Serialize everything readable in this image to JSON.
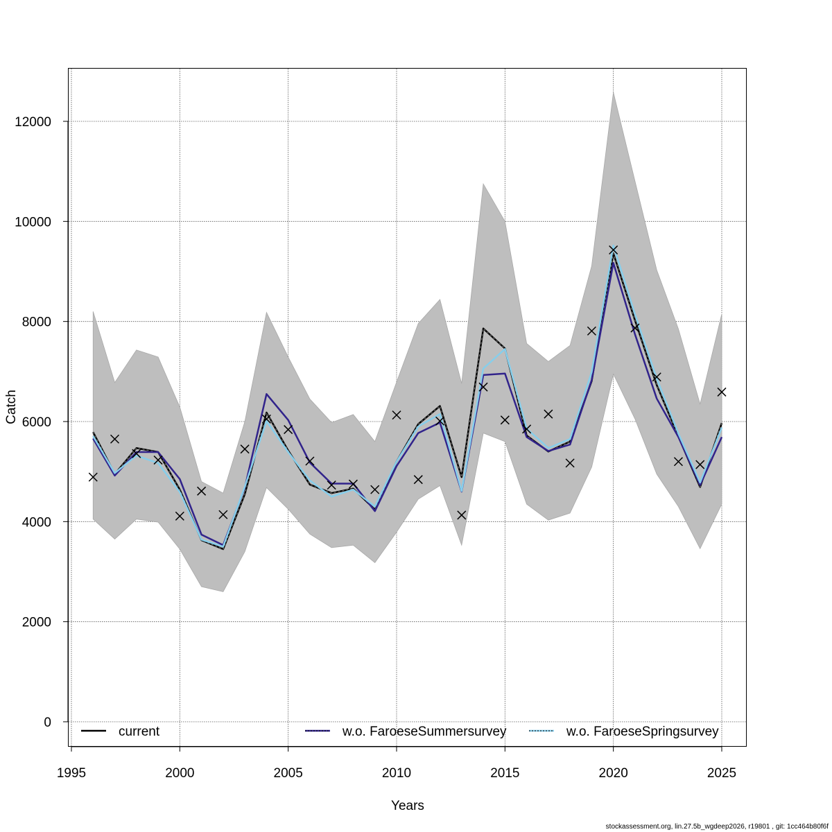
{
  "chart_data": {
    "type": "line",
    "title": "",
    "xlabel": "Years",
    "ylabel": "Catch",
    "xlim": [
      1995,
      2025
    ],
    "ylim": [
      0,
      12000
    ],
    "x_ticks": [
      1995,
      2000,
      2005,
      2010,
      2015,
      2020,
      2025
    ],
    "y_ticks": [
      0,
      2000,
      4000,
      6000,
      8000,
      10000,
      12000
    ],
    "grid": true,
    "legend_position": "bottom",
    "x": [
      1996,
      1997,
      1998,
      1999,
      2000,
      2001,
      2002,
      2003,
      2004,
      2005,
      2006,
      2007,
      2008,
      2009,
      2010,
      2011,
      2012,
      2013,
      2014,
      2015,
      2016,
      2017,
      2018,
      2019,
      2020,
      2021,
      2022,
      2023,
      2024,
      2025
    ],
    "confidence_band": {
      "name": "current 95% CI",
      "color": "#bebebe",
      "lower": [
        4050,
        3650,
        4050,
        3990,
        3450,
        2700,
        2600,
        3400,
        4680,
        4250,
        3750,
        3480,
        3530,
        3180,
        3790,
        4450,
        4720,
        3530,
        5770,
        5600,
        4350,
        4030,
        4170,
        5090,
        6950,
        6050,
        4950,
        4300,
        3460,
        4350
      ],
      "upper": [
        8200,
        6780,
        7430,
        7290,
        6290,
        4800,
        4570,
        6000,
        8180,
        7290,
        6450,
        5980,
        6140,
        5600,
        6790,
        7960,
        8440,
        6760,
        10750,
        10000,
        7560,
        7200,
        7520,
        9110,
        12580,
        10800,
        9030,
        7850,
        6350,
        8150
      ]
    },
    "series": [
      {
        "name": "current",
        "color": "#000000",
        "style": "solid",
        "values": [
          5790,
          4950,
          5470,
          5390,
          4640,
          3630,
          3450,
          4550,
          6180,
          5420,
          4740,
          4570,
          4660,
          4240,
          5200,
          5950,
          6310,
          4890,
          7860,
          7460,
          5720,
          5400,
          5600,
          6810,
          9360,
          8020,
          6730,
          5700,
          4690,
          5970
        ]
      },
      {
        "name": "w.o. FaroeseSummersurvey",
        "color": "#31238b",
        "style": "solid",
        "values": [
          5660,
          4920,
          5390,
          5390,
          4850,
          3740,
          3530,
          4680,
          6550,
          6030,
          5180,
          4760,
          4760,
          4210,
          5110,
          5770,
          5980,
          4600,
          6930,
          6960,
          5690,
          5410,
          5540,
          6830,
          9170,
          7740,
          6460,
          5690,
          4730,
          5690
        ]
      },
      {
        "name": "w.o. FaroeseSpringsurvey",
        "color": "#87ceeb",
        "style": "dotted",
        "values": [
          5710,
          4970,
          5320,
          5170,
          4590,
          3640,
          3500,
          4700,
          6010,
          5390,
          4820,
          4500,
          4640,
          4300,
          5200,
          5900,
          6150,
          4610,
          7060,
          7450,
          5860,
          5470,
          5650,
          6990,
          9520,
          8140,
          6860,
          5760,
          4780,
          5880
        ]
      }
    ],
    "observations": {
      "name": "observed catch",
      "marker": "x",
      "values": [
        4890,
        5650,
        5360,
        5230,
        4110,
        4610,
        4140,
        5450,
        6050,
        5840,
        5210,
        4730,
        4750,
        4640,
        6130,
        4840,
        6010,
        4130,
        6690,
        6030,
        5850,
        6150,
        5170,
        7810,
        9430,
        7870,
        6890,
        5200,
        5140,
        6590
      ]
    },
    "legend": [
      "current",
      "w.o. FaroeseSummersurvey",
      "w.o. FaroeseSpringsurvey"
    ],
    "footer": "stockassessment.org, lin.27.5b_wgdeep2026, r19801 , git: 1cc464b80f6f"
  }
}
